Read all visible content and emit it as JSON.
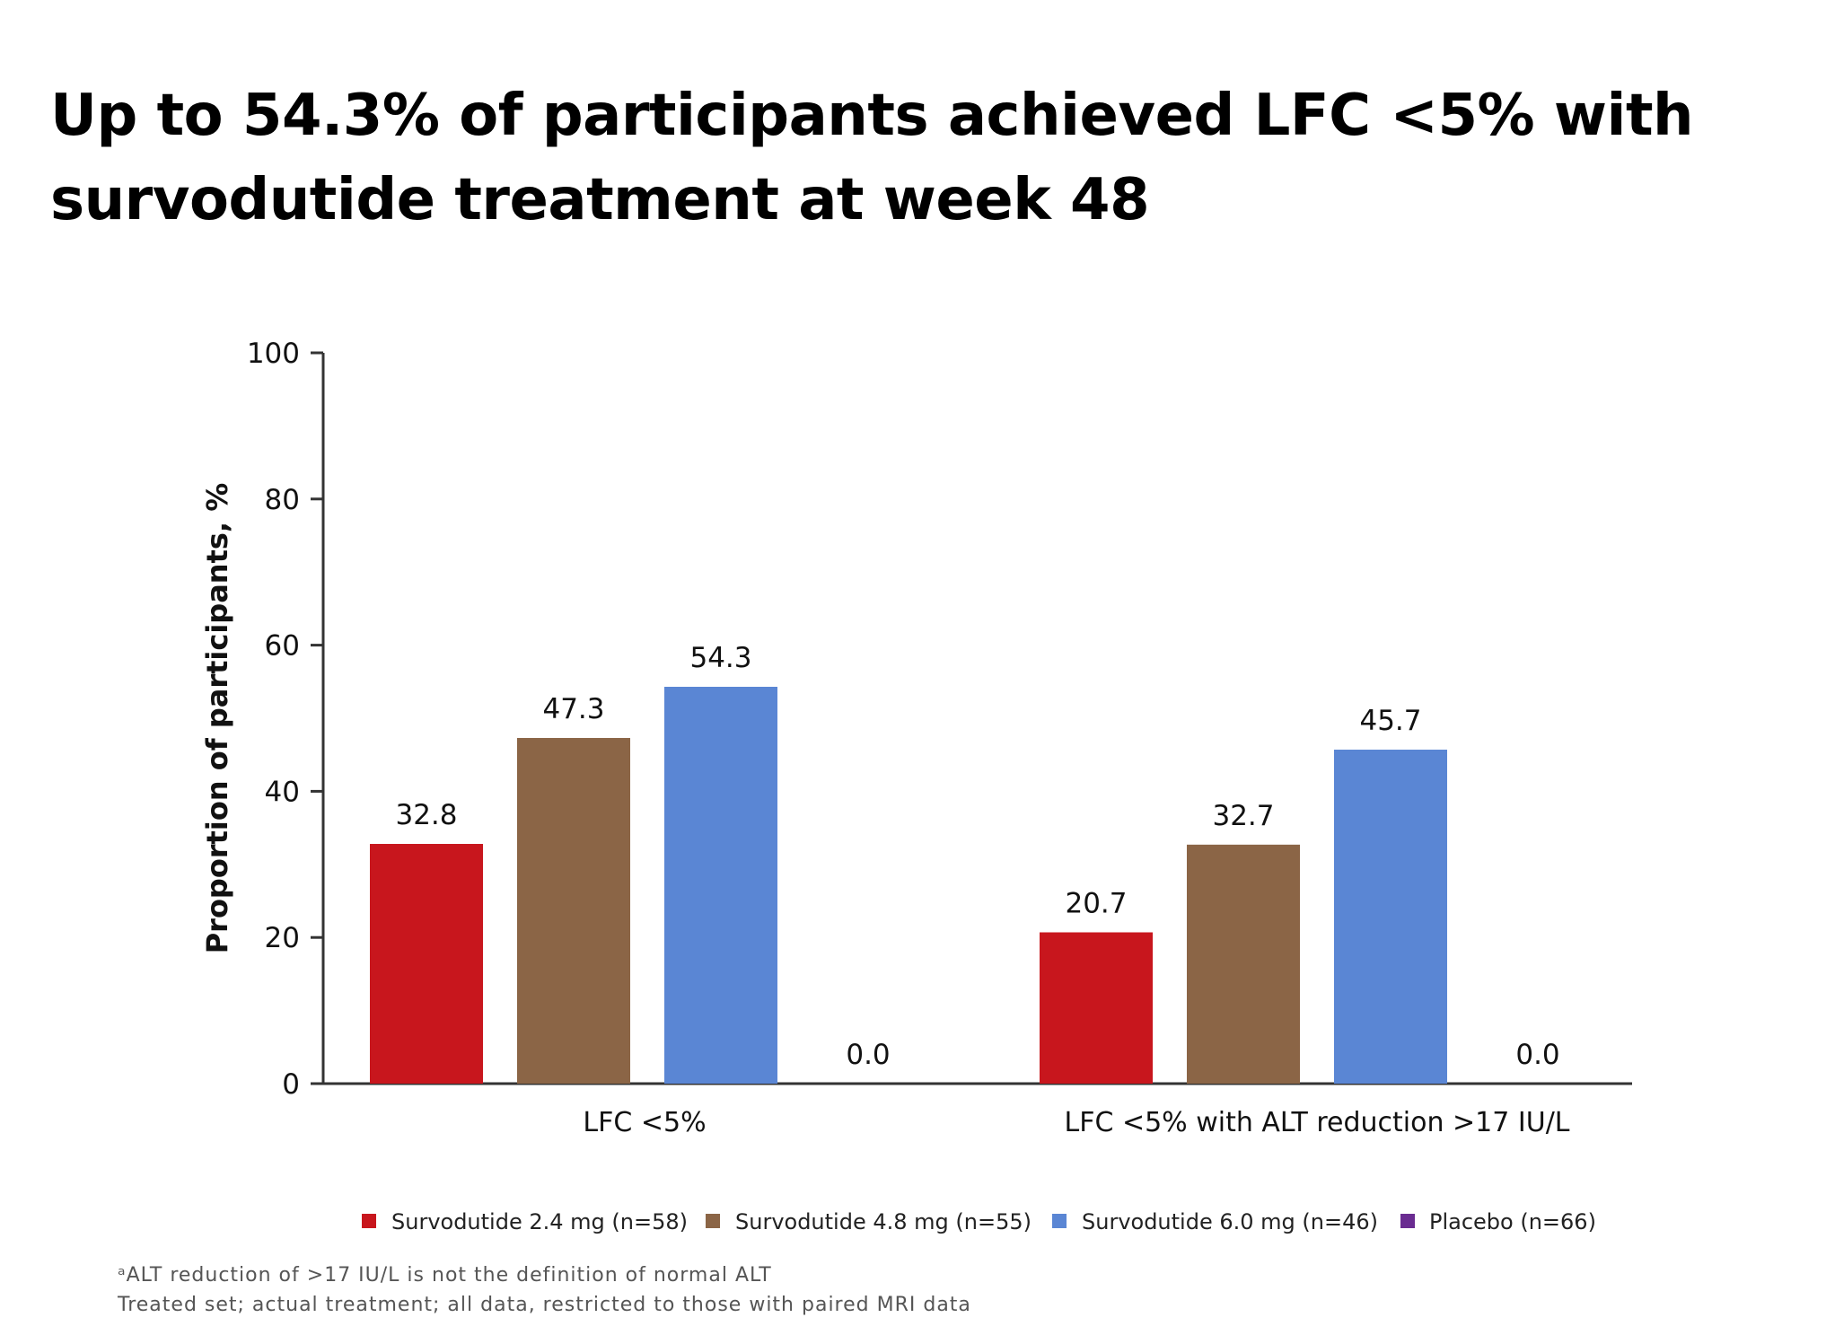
{
  "title": "Up to 54.3% of participants achieved LFC <5% with survodutide treatment at week 48",
  "colors": {
    "red": "#c8161d",
    "brown": "#8b6546",
    "blue": "#5a86d4",
    "purple": "#6a2c91",
    "axis": "#333333"
  },
  "chart_data": {
    "type": "bar",
    "ylabel": "Proportion of participants, %",
    "xlabel": "",
    "ylim": [
      0,
      100
    ],
    "yticks": [
      "0",
      "20",
      "40",
      "60",
      "80",
      "100"
    ],
    "grid": false,
    "legend_position": "bottom",
    "categories": [
      "LFC <5%",
      "LFC <5% with ALT reduction >17 IU/L"
    ],
    "series": [
      {
        "name": "Survodutide 2.4 mg (n=58)",
        "color": "#c8161d",
        "values": [
          32.8,
          20.7
        ],
        "labels": [
          "32.8",
          "20.7"
        ]
      },
      {
        "name": "Survodutide 4.8 mg (n=55)",
        "color": "#8b6546",
        "values": [
          47.3,
          32.7
        ],
        "labels": [
          "47.3",
          "32.7"
        ]
      },
      {
        "name": "Survodutide 6.0 mg (n=46)",
        "color": "#5a86d4",
        "values": [
          54.3,
          45.7
        ],
        "labels": [
          "54.3",
          "45.7"
        ]
      },
      {
        "name": "Placebo (n=66)",
        "color": "#6a2c91",
        "values": [
          0.0,
          0.0
        ],
        "labels": [
          "0.0",
          "0.0"
        ]
      }
    ]
  },
  "footnotes": {
    "line1": "ᵃALT reduction of >17 IU/L is not the definition of normal ALT",
    "line2": "Treated set; actual treatment; all data, restricted to those with paired MRI data"
  }
}
